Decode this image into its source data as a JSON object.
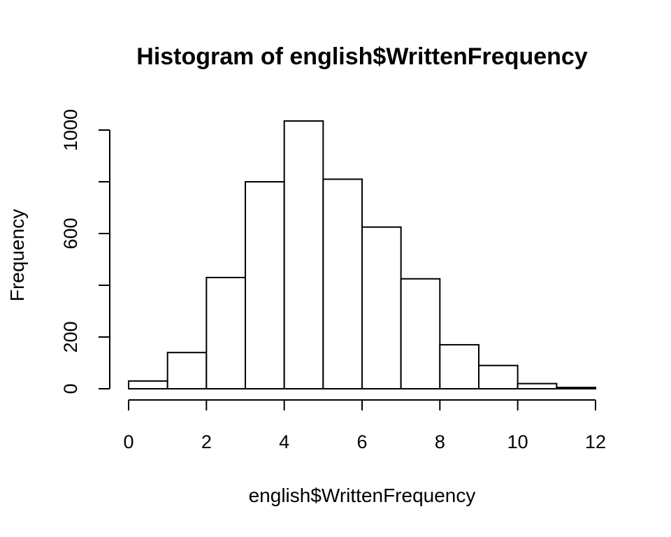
{
  "chart_data": {
    "type": "bar",
    "title": "Histogram of english$WrittenFrequency",
    "xlabel": "english$WrittenFrequency",
    "ylabel": "Frequency",
    "bins": [
      {
        "start": 0,
        "end": 1,
        "count": 30
      },
      {
        "start": 1,
        "end": 2,
        "count": 140
      },
      {
        "start": 2,
        "end": 3,
        "count": 430
      },
      {
        "start": 3,
        "end": 4,
        "count": 800
      },
      {
        "start": 4,
        "end": 5,
        "count": 1035
      },
      {
        "start": 5,
        "end": 6,
        "count": 810
      },
      {
        "start": 6,
        "end": 7,
        "count": 625
      },
      {
        "start": 7,
        "end": 8,
        "count": 425
      },
      {
        "start": 8,
        "end": 9,
        "count": 170
      },
      {
        "start": 9,
        "end": 10,
        "count": 90
      },
      {
        "start": 10,
        "end": 11,
        "count": 20
      },
      {
        "start": 11,
        "end": 12,
        "count": 5
      }
    ],
    "xlim": [
      0,
      12
    ],
    "ylim": [
      0,
      1040
    ],
    "x_ticks": [
      0,
      2,
      4,
      6,
      8,
      10,
      12
    ],
    "y_ticks": [
      0,
      200,
      400,
      600,
      800,
      1000
    ],
    "x_tick_labels": [
      "0",
      "2",
      "4",
      "6",
      "8",
      "10",
      "12"
    ],
    "y_tick_labels": [
      "0",
      "200",
      "",
      "600",
      "",
      "1000"
    ],
    "grid": false,
    "colors": {
      "bar_fill": "#ffffff",
      "bar_stroke": "#000000"
    }
  }
}
